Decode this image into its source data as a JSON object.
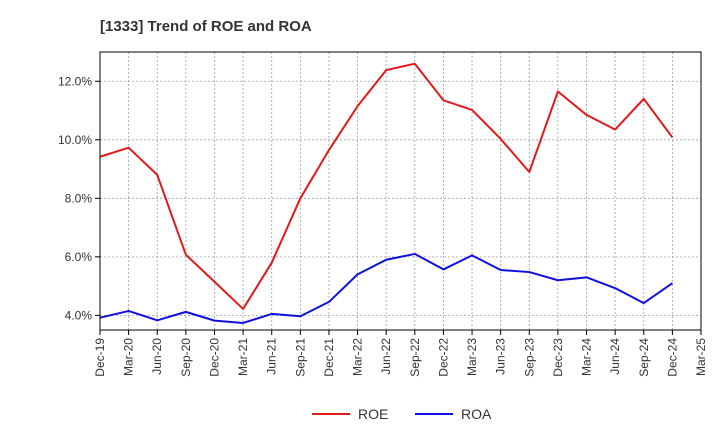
{
  "colors": {
    "roe": "#e31a1c",
    "roa": "#1010e0",
    "grid": "#a0a0a0",
    "axis": "#000000",
    "text": "#333333"
  },
  "chart_data": {
    "type": "line",
    "title": "[1333]  Trend of ROE and ROA",
    "xlabel": "",
    "ylabel": "",
    "categories": [
      "Dec-19",
      "Mar-20",
      "Jun-20",
      "Sep-20",
      "Dec-20",
      "Mar-21",
      "Jun-21",
      "Sep-21",
      "Dec-21",
      "Mar-22",
      "Jun-22",
      "Sep-22",
      "Dec-22",
      "Mar-23",
      "Jun-23",
      "Sep-23",
      "Dec-23",
      "Mar-24",
      "Jun-24",
      "Sep-24",
      "Dec-24",
      "Mar-25"
    ],
    "series": [
      {
        "name": "ROE",
        "color": "#e31a1c",
        "values": [
          9.42,
          9.73,
          8.8,
          6.07,
          5.15,
          4.22,
          5.8,
          8.0,
          9.65,
          11.15,
          12.38,
          12.6,
          11.35,
          11.02,
          10.03,
          8.9,
          11.65,
          10.85,
          10.35,
          11.4,
          10.08,
          null
        ]
      },
      {
        "name": "ROA",
        "color": "#1010e0",
        "values": [
          3.92,
          4.15,
          3.83,
          4.12,
          3.82,
          3.74,
          4.05,
          3.97,
          4.46,
          5.4,
          5.9,
          6.1,
          5.57,
          6.05,
          5.55,
          5.48,
          5.2,
          5.3,
          4.93,
          4.42,
          5.1,
          null
        ]
      }
    ],
    "yticks": [
      4.0,
      6.0,
      8.0,
      10.0,
      12.0
    ],
    "ytick_labels": [
      "4.0%",
      "6.0%",
      "8.0%",
      "10.0%",
      "12.0%"
    ],
    "ylim": [
      3.5,
      13.0
    ],
    "grid": true,
    "legend": {
      "placement": "bottom-center",
      "items": [
        "ROE",
        "ROA"
      ]
    }
  }
}
